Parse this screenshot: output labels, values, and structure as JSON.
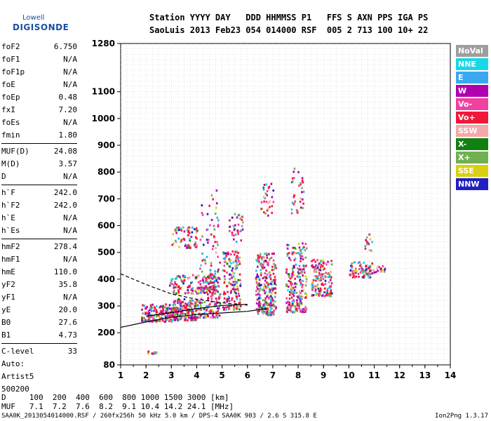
{
  "logo": {
    "line1": "Lowell",
    "line2": "DIGISONDE"
  },
  "header": {
    "line1": "Station YYYY DAY   DDD HHMMSS P1   FFS S AXN PPS IGA PS",
    "line2": "SaoLuis 2013 Feb23 054 014000 RSF  005 2 713 100 10+ 22"
  },
  "params": [
    {
      "k": "foF2",
      "v": "6.750"
    },
    {
      "k": "foF1",
      "v": "N/A"
    },
    {
      "k": "foF1p",
      "v": "N/A"
    },
    {
      "k": "foE",
      "v": "N/A"
    },
    {
      "k": "foEp",
      "v": "0.48"
    },
    {
      "k": "fxI",
      "v": "7.20"
    },
    {
      "k": "foEs",
      "v": "N/A"
    },
    {
      "k": "fmin",
      "v": "1.80"
    },
    {
      "k": "MUF(D)",
      "v": "24.08"
    },
    {
      "k": "M(D)",
      "v": "3.57"
    },
    {
      "k": "D",
      "v": "N/A"
    },
    {
      "k": "h`F",
      "v": "242.0"
    },
    {
      "k": "h`F2",
      "v": "242.0"
    },
    {
      "k": "h`E",
      "v": "N/A"
    },
    {
      "k": "h`Es",
      "v": "N/A"
    },
    {
      "k": "hmF2",
      "v": "278.4"
    },
    {
      "k": "hmF1",
      "v": "N/A"
    },
    {
      "k": "hmE",
      "v": "110.0"
    },
    {
      "k": "yF2",
      "v": "35.8"
    },
    {
      "k": "yF1",
      "v": "N/A"
    },
    {
      "k": "yE",
      "v": "20.0"
    },
    {
      "k": "B0",
      "v": "27.6"
    },
    {
      "k": "B1",
      "v": "4.73"
    },
    {
      "k": "C-level",
      "v": "33"
    }
  ],
  "auto": {
    "l1": "Auto:",
    "l2": "Artist5",
    "l3": "500200"
  },
  "legend": [
    {
      "name": "NoVal",
      "color": "#9e9e9e"
    },
    {
      "name": "NNE",
      "color": "#18d8e8"
    },
    {
      "name": "E",
      "color": "#3aa8f0"
    },
    {
      "name": "W",
      "color": "#b000b0"
    },
    {
      "name": "Vo-",
      "color": "#f040a0"
    },
    {
      "name": "Vo+",
      "color": "#f01838"
    },
    {
      "name": "SSW",
      "color": "#f4a8a8"
    },
    {
      "name": "X-",
      "color": "#108010"
    },
    {
      "name": "X+",
      "color": "#70b050"
    },
    {
      "name": "SSE",
      "color": "#d8d010"
    },
    {
      "name": "NNW",
      "color": "#2020c0"
    }
  ],
  "footer": {
    "d_row": "D     100  200  400  600  800 1000 1500 3000 [km]",
    "muf_row": "MUF   7.1  7.2  7.6  8.2  9.1 10.4 14.2 24.1 [MHz]",
    "file": "SAA0K_2013054014000.RSF / 260fx256h 50 kHz 5.0 km / DPS-4 SAA0K 903 / 2.6 S 315.8 E",
    "version": "Ion2Png 1.3.17"
  },
  "chart_data": {
    "type": "scatter",
    "xlim": [
      1,
      14
    ],
    "ylim": [
      80,
      1280
    ],
    "x_ticks": [
      1,
      2,
      3,
      4,
      5,
      6,
      7,
      8,
      9,
      10,
      11,
      12,
      13,
      14
    ],
    "y_ticks": [
      80,
      200,
      300,
      400,
      500,
      600,
      700,
      800,
      900,
      1000,
      1100,
      1280
    ],
    "xlabel": "",
    "ylabel": "",
    "grid": true,
    "legend_position": "right",
    "clusters": [
      {
        "f": [
          1.8,
          3.0
        ],
        "h": [
          245,
          310
        ],
        "n": 160
      },
      {
        "f": [
          3.0,
          4.0
        ],
        "h": [
          250,
          330
        ],
        "n": 180
      },
      {
        "f": [
          2.9,
          4.8
        ],
        "h": [
          350,
          420
        ],
        "n": 120
      },
      {
        "f": [
          4.0,
          4.9
        ],
        "h": [
          260,
          420
        ],
        "n": 160
      },
      {
        "f": [
          4.1,
          4.9
        ],
        "h": [
          420,
          740
        ],
        "n": 60
      },
      {
        "f": [
          5.0,
          5.7
        ],
        "h": [
          290,
          510
        ],
        "n": 160
      },
      {
        "f": [
          5.2,
          5.8
        ],
        "h": [
          540,
          650
        ],
        "n": 35
      },
      {
        "f": [
          3.0,
          4.0
        ],
        "h": [
          520,
          600
        ],
        "n": 60
      },
      {
        "f": [
          6.3,
          7.1
        ],
        "h": [
          270,
          500
        ],
        "n": 260
      },
      {
        "f": [
          6.5,
          7.0
        ],
        "h": [
          640,
          760
        ],
        "n": 30
      },
      {
        "f": [
          7.5,
          8.3
        ],
        "h": [
          280,
          540
        ],
        "n": 220
      },
      {
        "f": [
          7.7,
          8.2
        ],
        "h": [
          650,
          820
        ],
        "n": 35
      },
      {
        "f": [
          8.5,
          9.3
        ],
        "h": [
          340,
          480
        ],
        "n": 140
      },
      {
        "f": [
          10.0,
          10.9
        ],
        "h": [
          410,
          470
        ],
        "n": 70
      },
      {
        "f": [
          10.5,
          11.4
        ],
        "h": [
          425,
          455
        ],
        "n": 30
      },
      {
        "f": [
          10.6,
          10.9
        ],
        "h": [
          510,
          580
        ],
        "n": 15
      },
      {
        "f": [
          2.0,
          2.4
        ],
        "h": [
          125,
          135
        ],
        "n": 10
      }
    ],
    "traces": [
      {
        "name": "black-curve",
        "style": "solid",
        "points": [
          [
            1,
            220
          ],
          [
            2,
            240
          ],
          [
            3,
            258
          ],
          [
            4,
            268
          ],
          [
            5,
            274
          ],
          [
            6,
            280
          ],
          [
            6.75,
            290
          ]
        ]
      },
      {
        "name": "black-curve-upper",
        "style": "solid",
        "points": [
          [
            2,
            262
          ],
          [
            3,
            275
          ],
          [
            4,
            290
          ],
          [
            5,
            302
          ],
          [
            6,
            306
          ]
        ]
      },
      {
        "name": "dashed-curve",
        "style": "dashed",
        "points": [
          [
            1,
            420
          ],
          [
            2,
            380
          ],
          [
            3,
            345
          ],
          [
            4,
            325
          ],
          [
            5,
            312
          ],
          [
            6,
            303
          ]
        ]
      }
    ]
  }
}
